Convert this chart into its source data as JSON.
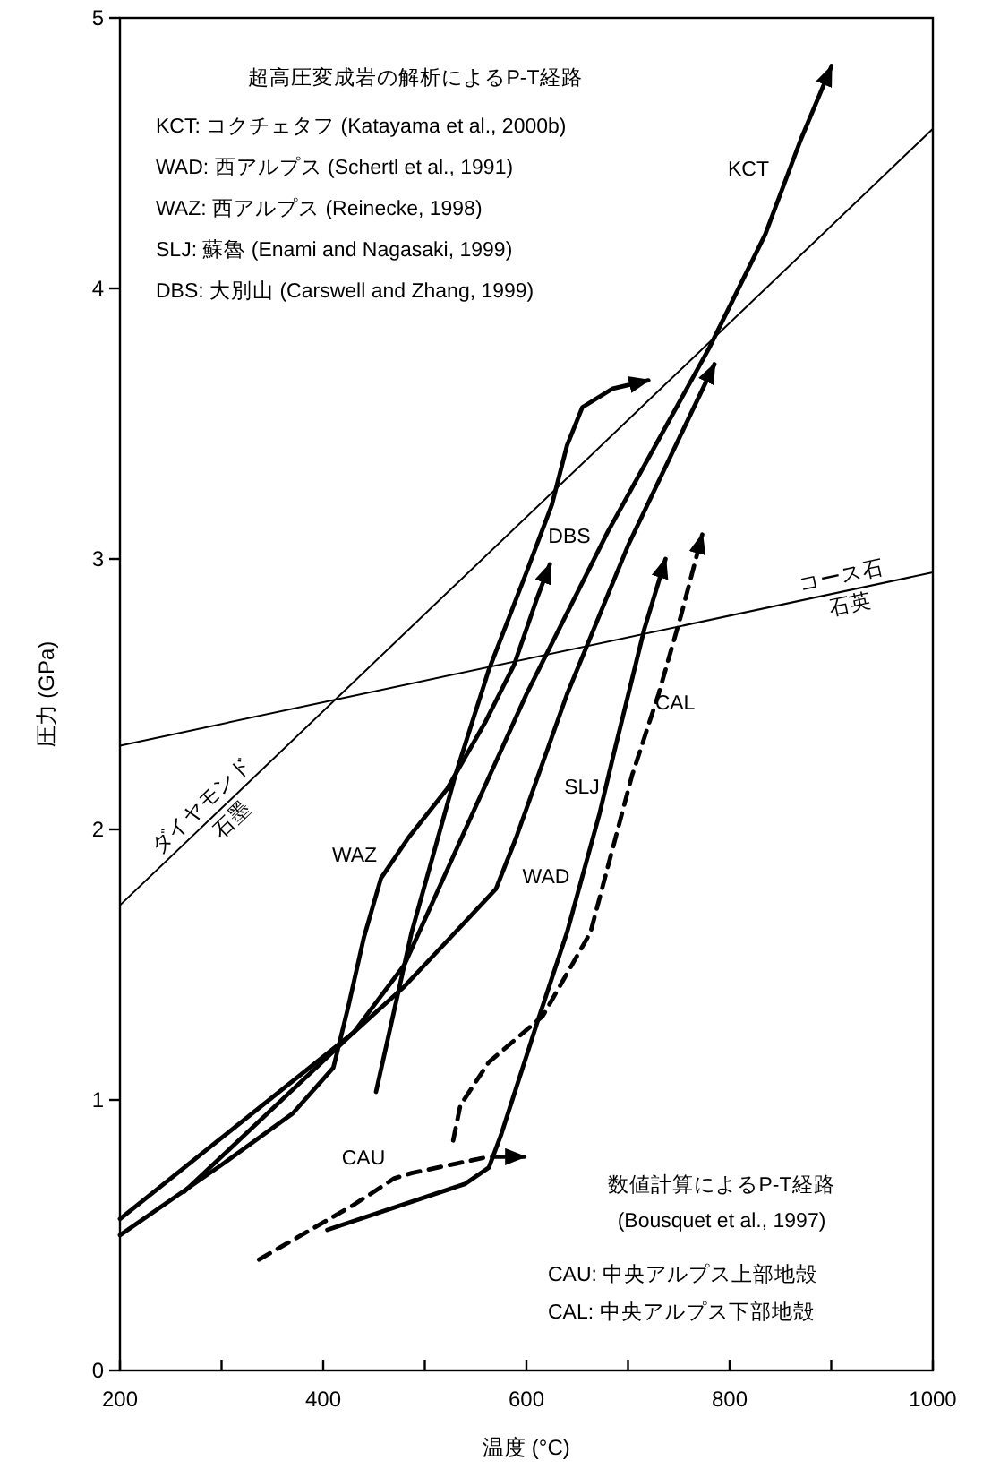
{
  "chart_data": {
    "type": "line",
    "xlabel": "温度 (°C)",
    "ylabel": "圧力 (GPa)",
    "xlim": [
      200,
      1000
    ],
    "ylim": [
      0,
      5
    ],
    "xticks": [
      200,
      {
        "value": 300,
        "label": null
      },
      400,
      {
        "value": 500,
        "label": null
      },
      600,
      {
        "value": 700,
        "label": null
      },
      800,
      {
        "value": 900,
        "label": null
      },
      1000
    ],
    "yticks": [
      0,
      1,
      2,
      3,
      4,
      5
    ],
    "grid": false,
    "series": [
      {
        "color": "#000000",
        "x": [
          200,
          1000
        ],
        "values": [
          1.72,
          4.59
        ]
      },
      {
        "color": "#000000",
        "x": [
          200,
          1000
        ],
        "values": [
          2.31,
          2.95
        ]
      },
      {
        "color": "#000000",
        "x": [
          263,
          430,
          480,
          540,
          600,
          680,
          780,
          835,
          870,
          900
        ],
        "values": [
          0.66,
          1.25,
          1.5,
          2.0,
          2.5,
          3.1,
          3.78,
          4.2,
          4.55,
          4.82
        ]
      },
      {
        "color": "#000000",
        "x": [
          200,
          430,
          480,
          530,
          570,
          590,
          640,
          700,
          785
        ],
        "values": [
          0.56,
          1.25,
          1.42,
          1.62,
          1.78,
          1.97,
          2.5,
          3.05,
          3.72
        ]
      },
      {
        "color": "#000000",
        "x": [
          200,
          300,
          370,
          410,
          425,
          440,
          457,
          484,
          522,
          560,
          588,
          610,
          623
        ],
        "values": [
          0.5,
          0.76,
          0.95,
          1.12,
          1.35,
          1.6,
          1.82,
          1.97,
          2.15,
          2.4,
          2.61,
          2.85,
          2.98
        ]
      },
      {
        "color": "#000000",
        "x": [
          452,
          487,
          530,
          563,
          600,
          625,
          640,
          655,
          685,
          720
        ],
        "values": [
          1.03,
          1.62,
          2.2,
          2.59,
          2.95,
          3.2,
          3.42,
          3.56,
          3.63,
          3.66
        ]
      },
      {
        "color": "#000000",
        "x": [
          404,
          540,
          563,
          575,
          611,
          640,
          672,
          686,
          716,
          737
        ],
        "values": [
          0.52,
          0.69,
          0.75,
          0.87,
          1.29,
          1.62,
          2.06,
          2.28,
          2.74,
          3.0
        ]
      },
      {
        "color": "#000000",
        "line_style": "dashed",
        "x": [
          337,
          429,
          470,
          487,
          563,
          598
        ],
        "values": [
          0.41,
          0.61,
          0.71,
          0.73,
          0.79,
          0.79
        ]
      },
      {
        "color": "#000000",
        "line_style": "dashed",
        "x": [
          528,
          535,
          563,
          616,
          663,
          704,
          730,
          752,
          773
        ],
        "values": [
          0.85,
          0.98,
          1.14,
          1.31,
          1.62,
          2.2,
          2.5,
          2.79,
          3.09
        ]
      }
    ],
    "annotations": [
      "超高圧変成岩の解析によるP-T経路",
      "KCT:  コクチェタフ (Katayama et al., 2000b)",
      "WAD:  西アルプス (Schertl et al., 1991)",
      "WAZ:  西アルプス (Reinecke, 1998)",
      "SLJ:  蘇魯 (Enami and Nagasaki, 1999)",
      "DBS:  大別山 (Carswell and Zhang, 1999)",
      "数値計算によるP-T経路",
      "(Bousquet et al., 1997)",
      "CAU:  中央アルプス上部地殻",
      "CAL:  中央アルプス下部地殻",
      "KCT",
      "WAD",
      "WAZ",
      "DBS",
      "SLJ",
      "CAL",
      "CAU",
      "ダイヤモンド",
      "石墨",
      "コース石",
      "石英"
    ]
  }
}
